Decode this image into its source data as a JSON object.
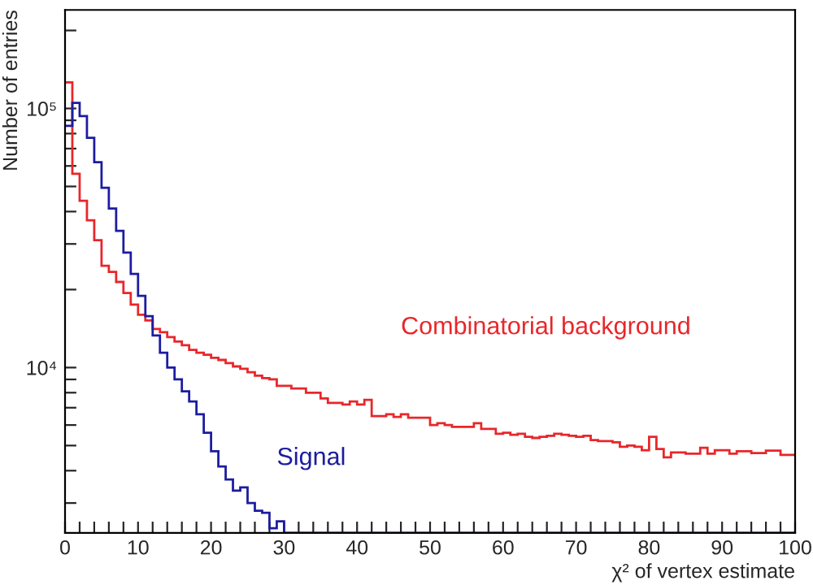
{
  "chart_data": {
    "type": "histogram",
    "xlabel": "χ² of vertex estimate",
    "ylabel": "Number of entries",
    "log": "y",
    "grid": false,
    "legend": false,
    "bins": [
      0,
      1,
      2,
      3,
      4,
      5,
      6,
      7,
      8,
      9,
      10,
      11,
      12,
      13,
      14,
      15,
      16,
      17,
      18,
      19,
      20,
      21,
      22,
      23,
      24,
      25,
      26,
      27,
      28,
      29,
      30,
      31,
      32,
      33,
      34,
      35,
      36,
      37,
      38,
      39,
      40,
      41,
      42,
      43,
      44,
      45,
      46,
      47,
      48,
      49,
      50,
      51,
      52,
      53,
      54,
      55,
      56,
      57,
      58,
      59,
      60,
      61,
      62,
      63,
      64,
      65,
      66,
      67,
      68,
      69,
      70,
      71,
      72,
      73,
      74,
      75,
      76,
      77,
      78,
      79,
      80,
      81,
      82,
      83,
      84,
      85,
      86,
      87,
      88,
      89,
      90,
      91,
      92,
      93,
      94,
      95,
      96,
      97,
      98,
      99,
      100
    ],
    "xlim": [
      0,
      100
    ],
    "xticks": [
      0,
      {
        "value": 2,
        "label": null
      },
      {
        "value": 4,
        "label": null
      },
      {
        "value": 6,
        "label": null
      },
      {
        "value": 8,
        "label": null
      },
      10,
      {
        "value": 12,
        "label": null
      },
      {
        "value": 14,
        "label": null
      },
      {
        "value": 16,
        "label": null
      },
      {
        "value": 18,
        "label": null
      },
      20,
      {
        "value": 22,
        "label": null
      },
      {
        "value": 24,
        "label": null
      },
      {
        "value": 26,
        "label": null
      },
      {
        "value": 28,
        "label": null
      },
      30,
      {
        "value": 32,
        "label": null
      },
      {
        "value": 34,
        "label": null
      },
      {
        "value": 36,
        "label": null
      },
      {
        "value": 38,
        "label": null
      },
      40,
      {
        "value": 42,
        "label": null
      },
      {
        "value": 44,
        "label": null
      },
      {
        "value": 46,
        "label": null
      },
      {
        "value": 48,
        "label": null
      },
      50,
      {
        "value": 52,
        "label": null
      },
      {
        "value": 54,
        "label": null
      },
      {
        "value": 56,
        "label": null
      },
      {
        "value": 58,
        "label": null
      },
      60,
      {
        "value": 62,
        "label": null
      },
      {
        "value": 64,
        "label": null
      },
      {
        "value": 66,
        "label": null
      },
      {
        "value": 68,
        "label": null
      },
      70,
      {
        "value": 72,
        "label": null
      },
      {
        "value": 74,
        "label": null
      },
      {
        "value": 76,
        "label": null
      },
      {
        "value": 78,
        "label": null
      },
      80,
      {
        "value": 82,
        "label": null
      },
      {
        "value": 84,
        "label": null
      },
      {
        "value": 86,
        "label": null
      },
      {
        "value": 88,
        "label": null
      },
      90,
      {
        "value": 92,
        "label": null
      },
      {
        "value": 94,
        "label": null
      },
      {
        "value": 96,
        "label": null
      },
      {
        "value": 98,
        "label": null
      },
      100
    ],
    "ylim": [
      2300,
      240000
    ],
    "yticks": [
      {
        "value": 3000,
        "label": null
      },
      {
        "value": 4000,
        "label": null
      },
      {
        "value": 5000,
        "label": null
      },
      {
        "value": 6000,
        "label": null
      },
      {
        "value": 7000,
        "label": null
      },
      {
        "value": 8000,
        "label": null
      },
      {
        "value": 9000,
        "label": null
      },
      {
        "value": 10000,
        "label": "10⁴"
      },
      {
        "value": 20000,
        "label": null
      },
      {
        "value": 30000,
        "label": null
      },
      {
        "value": 40000,
        "label": null
      },
      {
        "value": 50000,
        "label": null
      },
      {
        "value": 60000,
        "label": null
      },
      {
        "value": 70000,
        "label": null
      },
      {
        "value": 80000,
        "label": null
      },
      {
        "value": 90000,
        "label": null
      },
      {
        "value": 100000,
        "label": "10⁵"
      },
      {
        "value": 200000,
        "label": null
      }
    ],
    "series": [
      {
        "name": "Combinatorial background",
        "color": "#e8262a",
        "values": [
          126000,
          56000,
          44000,
          37000,
          31000,
          24700,
          23400,
          21400,
          19400,
          17500,
          16000,
          15200,
          14100,
          13700,
          13100,
          12600,
          12200,
          11700,
          11400,
          11200,
          10900,
          10700,
          10400,
          10100,
          9900,
          9600,
          9300,
          9100,
          9000,
          8500,
          8500,
          8300,
          8300,
          8000,
          8000,
          7600,
          7300,
          7300,
          7200,
          7400,
          7200,
          7500,
          6500,
          6500,
          6600,
          6450,
          6600,
          6400,
          6400,
          6400,
          6000,
          6100,
          6000,
          5900,
          5900,
          5900,
          6100,
          5800,
          5800,
          5550,
          5600,
          5500,
          5550,
          5400,
          5350,
          5400,
          5450,
          5550,
          5500,
          5450,
          5400,
          5450,
          5250,
          5200,
          5200,
          5150,
          4950,
          5000,
          4950,
          4800,
          5400,
          4850,
          4500,
          4700,
          4700,
          4650,
          4650,
          4900,
          4650,
          4800,
          4800,
          4650,
          4750,
          4750,
          4680,
          4680,
          4780,
          4780,
          4600,
          4600
        ]
      },
      {
        "name": "Signal",
        "color": "#1c1ca0",
        "values": [
          85700,
          105000,
          93500,
          77000,
          62000,
          49400,
          41100,
          33700,
          27800,
          23000,
          18900,
          15800,
          13300,
          11400,
          10000,
          9000,
          8100,
          7400,
          6600,
          5600,
          4750,
          4150,
          3700,
          3350,
          3450,
          3000,
          2800,
          2750,
          2400,
          2550,
          null,
          null,
          null,
          null,
          null,
          null,
          null,
          null,
          null,
          null,
          null,
          null,
          null,
          null,
          null,
          null,
          null,
          null,
          null,
          null,
          null,
          null,
          null,
          null,
          null,
          null,
          null,
          null,
          null,
          null,
          null,
          null,
          null,
          null,
          null,
          null,
          null,
          null,
          null,
          null,
          null,
          null,
          null,
          null,
          null,
          null,
          null,
          null,
          null,
          null,
          null,
          null,
          null,
          null,
          null,
          null,
          null,
          null,
          null,
          null,
          null,
          null,
          null,
          null,
          null,
          null,
          null,
          null,
          null,
          null
        ]
      }
    ]
  }
}
